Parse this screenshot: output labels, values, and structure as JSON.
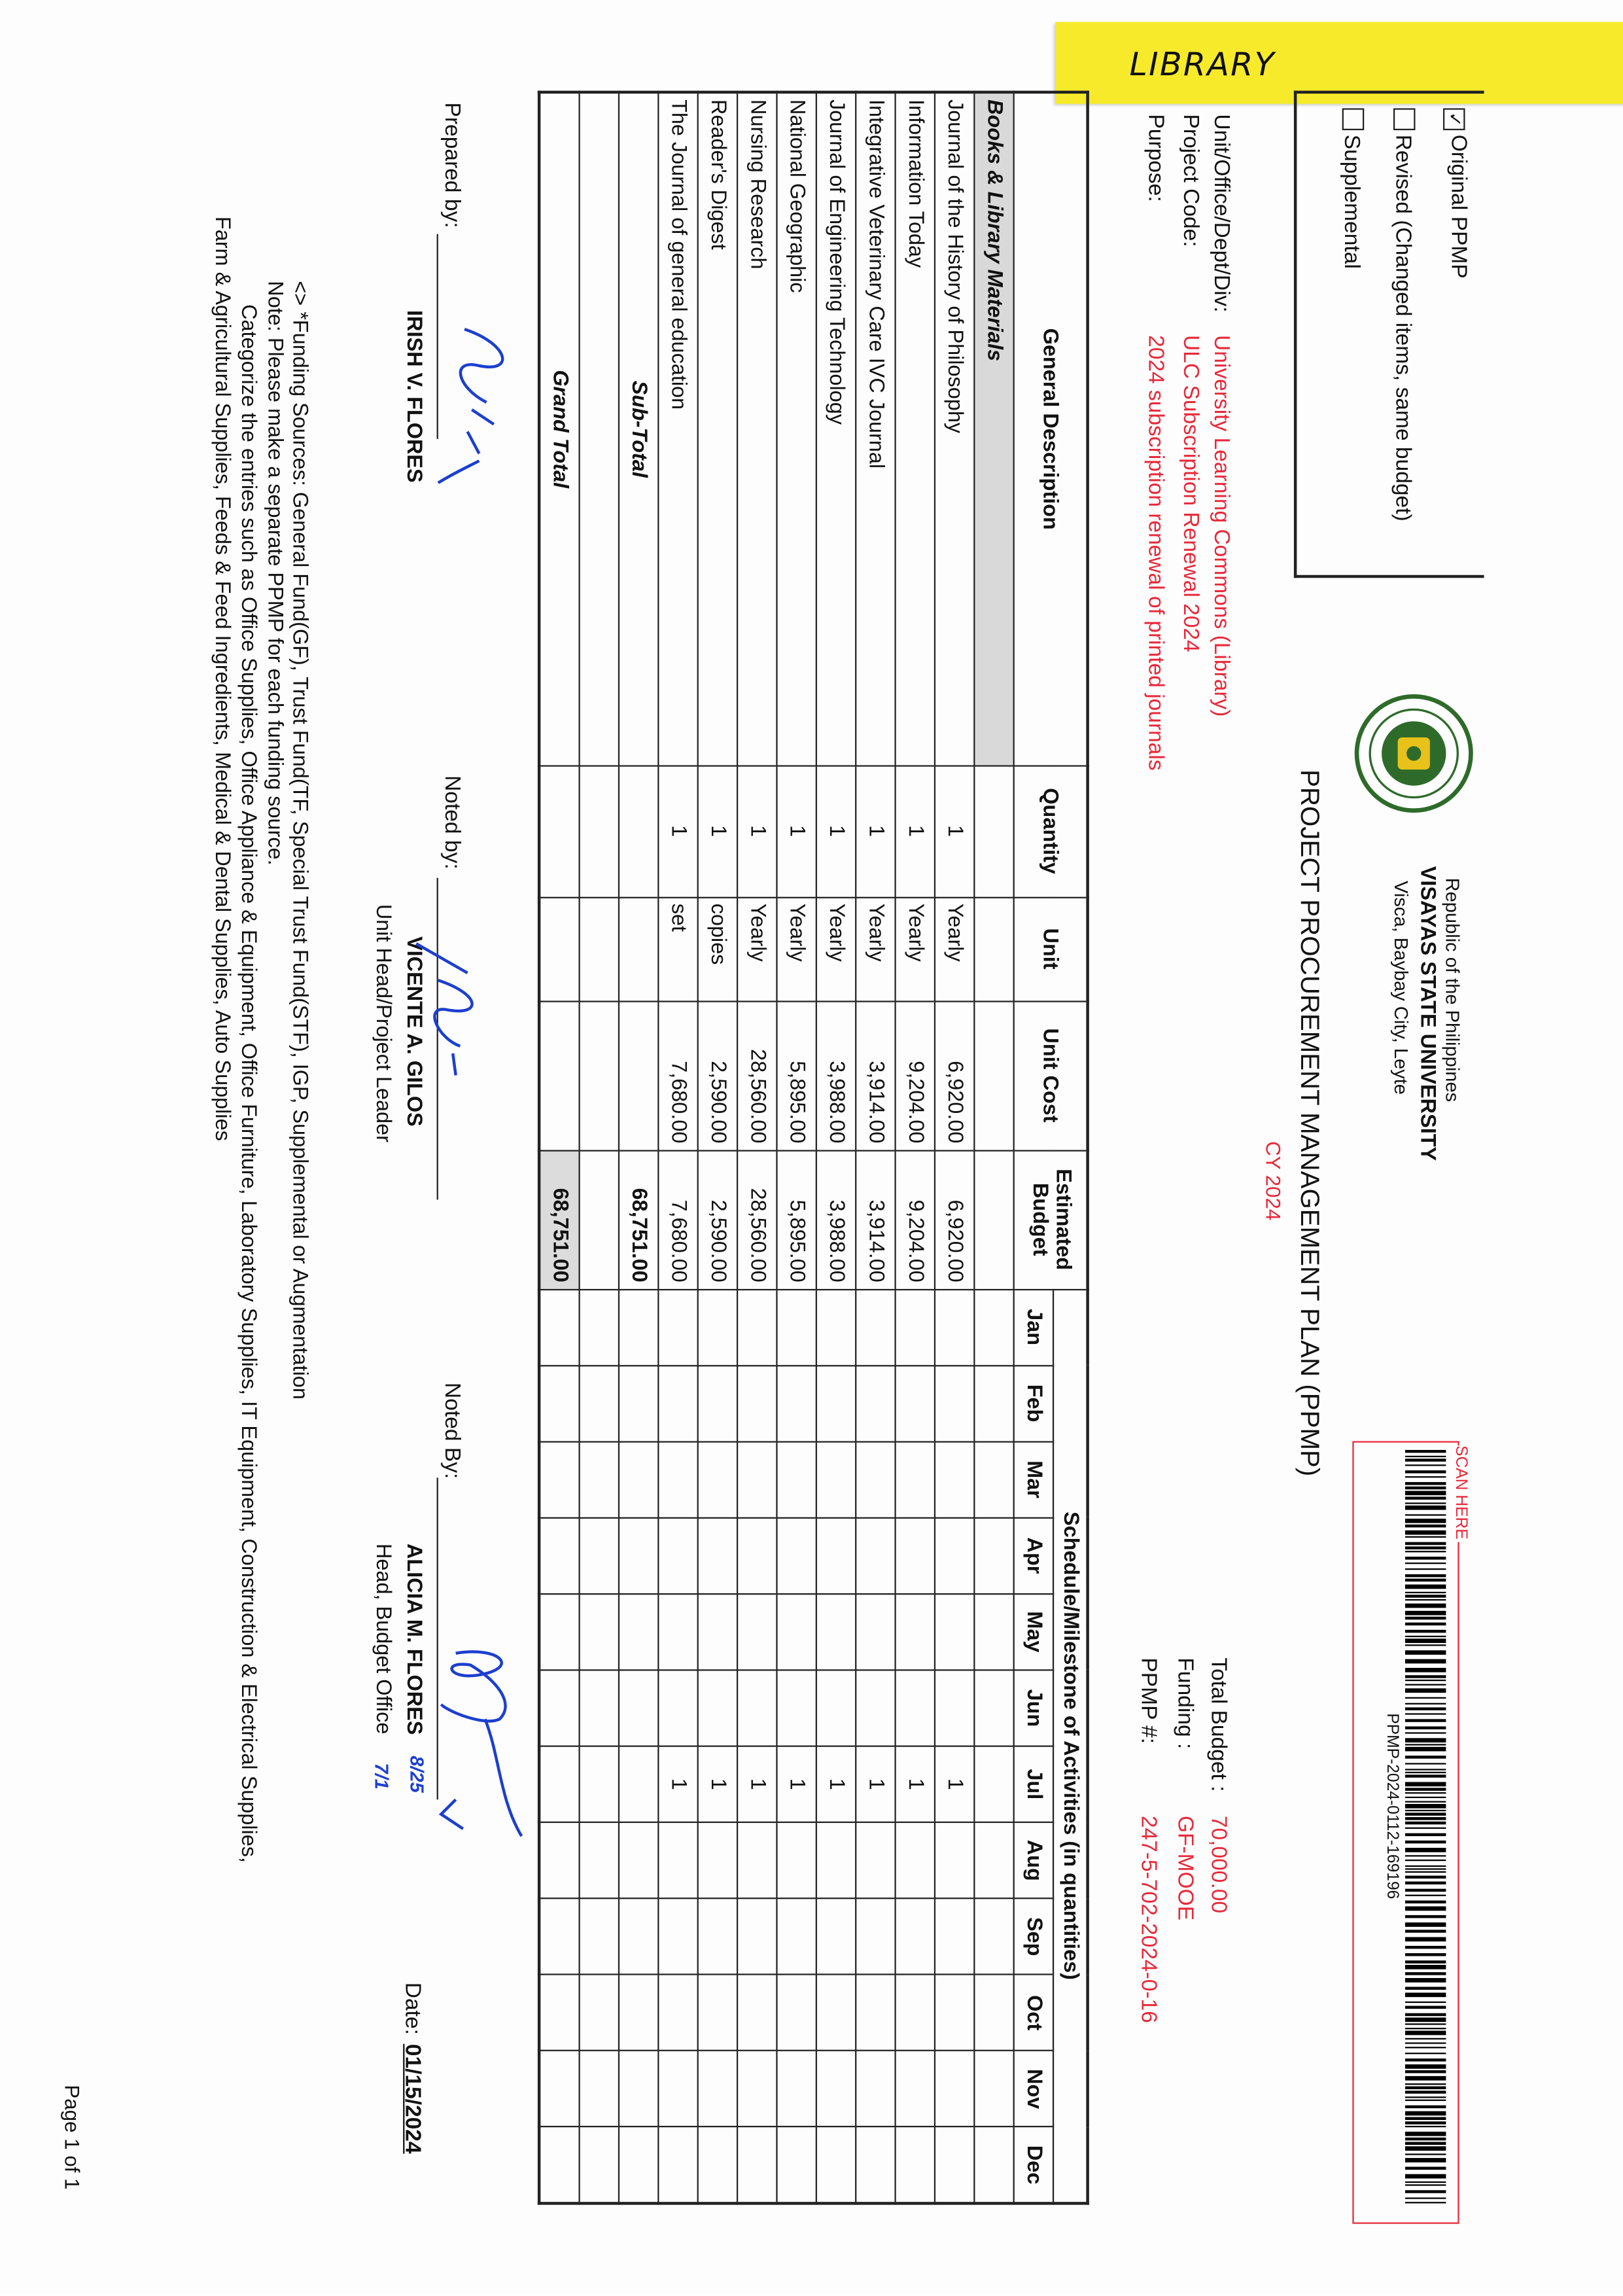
{
  "sticky_note": "LIBRARY",
  "ppmp_type": [
    {
      "label": "Original PPMP",
      "checked": true
    },
    {
      "label": "Revised (Changed items, same budget)",
      "checked": false
    },
    {
      "label": "Supplemental",
      "checked": false
    }
  ],
  "header": {
    "republic": "Republic of the Philippines",
    "university": "VISAYAS STATE UNIVERSITY",
    "address": "Visca, Baybay City, Leyte",
    "logo_text": "VISAYAS STATE UNIVERSITY",
    "title": "PROJECT PROCUREMENT MANAGEMENT PLAN (PPMP)",
    "cy": "CY 2024"
  },
  "barcode": {
    "scan_label": "SCAN HERE",
    "code": "PPMP-2024-0112-169196"
  },
  "info": {
    "unit_label": "Unit/Office/Dept/Div:",
    "unit_value": "University Learning Commons (Library)",
    "project_code_label": "Project Code:",
    "project_code_value": "ULC Subscription Renewal 2024",
    "purpose_label": "Purpose:",
    "purpose_value": "2024 subscription renewal of printed journals",
    "total_budget_label": "Total Budget :",
    "total_budget_value": "70,000.00",
    "funding_label": "Funding :",
    "funding_value": "GF-MOOE",
    "ppmp_no_label": "PPMP #:",
    "ppmp_no_value": "247-5-702-2024-0-16"
  },
  "table": {
    "headers": {
      "description": "General Description",
      "quantity": "Quantity",
      "unit": "Unit",
      "unit_cost": "Unit Cost",
      "budget": "Estimated Budget",
      "schedule": "Schedule/Milestone of Activities (in quantities)"
    },
    "months": [
      "Jan",
      "Feb",
      "Mar",
      "Apr",
      "May",
      "Jun",
      "Jul",
      "Aug",
      "Sep",
      "Oct",
      "Nov",
      "Dec"
    ],
    "category": "Books & Library Materials",
    "rows": [
      {
        "desc": "Journal of the History of Philosophy",
        "qty": "1",
        "unit": "Yearly",
        "unit_cost": "6,920.00",
        "budget": "6,920.00",
        "schedule": [
          "",
          "",
          "",
          "",
          "",
          "",
          "1",
          "",
          "",
          "",
          "",
          ""
        ]
      },
      {
        "desc": "Information Today",
        "qty": "1",
        "unit": "Yearly",
        "unit_cost": "9,204.00",
        "budget": "9,204.00",
        "schedule": [
          "",
          "",
          "",
          "",
          "",
          "",
          "1",
          "",
          "",
          "",
          "",
          ""
        ]
      },
      {
        "desc": "Integrative Veterinary Care IVC Journal",
        "qty": "1",
        "unit": "Yearly",
        "unit_cost": "3,914.00",
        "budget": "3,914.00",
        "schedule": [
          "",
          "",
          "",
          "",
          "",
          "",
          "1",
          "",
          "",
          "",
          "",
          ""
        ]
      },
      {
        "desc": "Journal of Engineering Technology",
        "qty": "1",
        "unit": "Yearly",
        "unit_cost": "3,988.00",
        "budget": "3,988.00",
        "schedule": [
          "",
          "",
          "",
          "",
          "",
          "",
          "1",
          "",
          "",
          "",
          "",
          ""
        ]
      },
      {
        "desc": "National Geographic",
        "qty": "1",
        "unit": "Yearly",
        "unit_cost": "5,895.00",
        "budget": "5,895.00",
        "schedule": [
          "",
          "",
          "",
          "",
          "",
          "",
          "1",
          "",
          "",
          "",
          "",
          ""
        ]
      },
      {
        "desc": "Nursing Research",
        "qty": "1",
        "unit": "Yearly",
        "unit_cost": "28,560.00",
        "budget": "28,560.00",
        "schedule": [
          "",
          "",
          "",
          "",
          "",
          "",
          "1",
          "",
          "",
          "",
          "",
          ""
        ]
      },
      {
        "desc": "Reader's Digest",
        "qty": "1",
        "unit": "copies",
        "unit_cost": "2,590.00",
        "budget": "2,590.00",
        "schedule": [
          "",
          "",
          "",
          "",
          "",
          "",
          "1",
          "",
          "",
          "",
          "",
          ""
        ]
      },
      {
        "desc": "The Journal of general education",
        "qty": "1",
        "unit": "set",
        "unit_cost": "7,680.00",
        "budget": "7,680.00",
        "schedule": [
          "",
          "",
          "",
          "",
          "",
          "",
          "1",
          "",
          "",
          "",
          "",
          ""
        ]
      }
    ],
    "subtotal_label": "Sub-Total",
    "subtotal_value": "68,751.00",
    "grand_total_label": "Grand Total",
    "grand_total_value": "68,751.00"
  },
  "signatories": {
    "prepared_label": "Prepared by:",
    "prepared_name": "IRISH V. FLORES",
    "noted1_label": "Noted by:",
    "noted1_name": "VICENTE A. GILOS",
    "noted1_title": "Unit Head/Project Leader",
    "noted2_label": "Noted By:",
    "noted2_name": "ALICIA M. FLORES",
    "noted2_title": "Head, Budget Office",
    "handwritten_1": "8/25",
    "handwritten_2": "7/1",
    "date_label": "Date:",
    "date_value": "01/15/2024"
  },
  "notes": [
    "<> *Funding Sources: General Fund(GF), Trust Fund(TF, Special Trust Fund(STF), IGP, Supplemental or Augmentation",
    "Note: Please make a separate PPMP for each funding source.",
    "Categorize the entries such as Office Supplies, Office Appliance & Equipment, Office Furniture, Laboratory Supplies, IT Equipment, Construction & Electrical Supplies,",
    "Farm & Agricultural Supplies, Feeds & Feed Ingredients, Medical & Dental Supplies, Auto Supplies"
  ],
  "page_label": "Page 1 of 1",
  "colors": {
    "accent_red": "#e8283a",
    "sticky_yellow": "#f7ea2a",
    "signature_blue": "#1c3fd0",
    "shade_gray": "#d9d9d9"
  }
}
